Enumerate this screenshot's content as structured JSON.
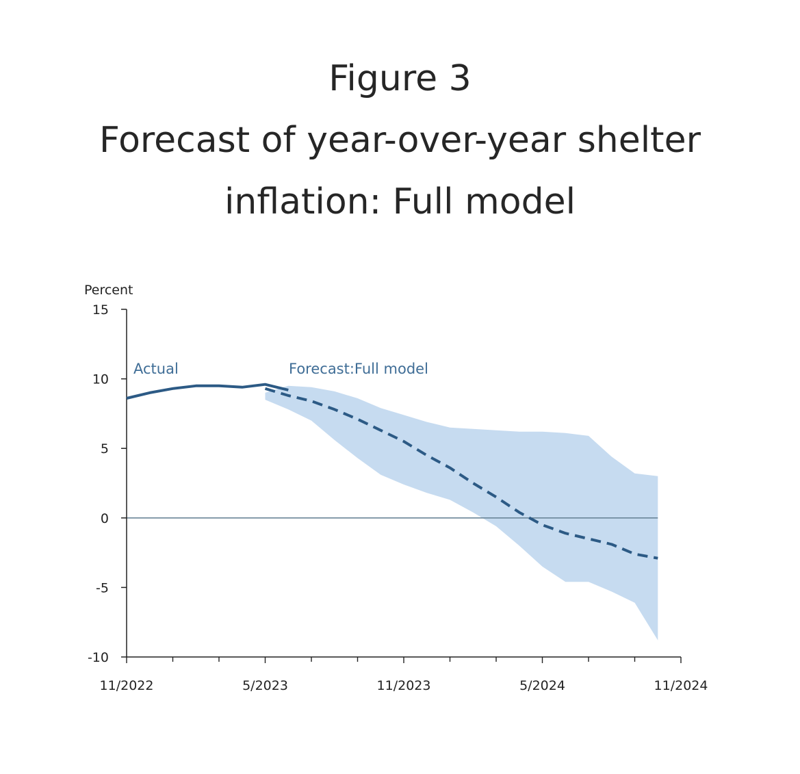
{
  "header": {
    "figure_label": "Figure 3",
    "title_line1": "Forecast of year-over-year shelter",
    "title_line2": "inflation: Full model"
  },
  "colors": {
    "actual_line": "#2c5a85",
    "forecast_line": "#2c5a85",
    "band_fill": "#c6dbf0",
    "zero_line": "#6a8598",
    "axis": "#222222",
    "annotation": "#3f6d96"
  },
  "chart_data": {
    "type": "line",
    "title": "Forecast of year-over-year shelter inflation: Full model",
    "ylabel": "Percent",
    "xlabel": "",
    "ylim": [
      -10,
      15
    ],
    "yticks": [
      15,
      10,
      5,
      0,
      -5,
      -10
    ],
    "x_tick_labels": [
      "11/2022",
      "5/2023",
      "11/2023",
      "5/2024",
      "11/2024"
    ],
    "x_axis_start": "2022-11",
    "x_axis_end": "2024-11",
    "grid": false,
    "annotations": [
      "Actual",
      "Forecast:Full model"
    ],
    "series": [
      {
        "name": "Actual",
        "style": "solid",
        "x": [
          "2022-11",
          "2022-12",
          "2023-01",
          "2023-02",
          "2023-03",
          "2023-04",
          "2023-05",
          "2023-06"
        ],
        "values": [
          8.6,
          9.0,
          9.3,
          9.5,
          9.5,
          9.4,
          9.6,
          9.2
        ]
      },
      {
        "name": "Forecast:Full model",
        "style": "dashed",
        "x": [
          "2023-05",
          "2023-06",
          "2023-07",
          "2023-08",
          "2023-09",
          "2023-10",
          "2023-11",
          "2023-12",
          "2024-01",
          "2024-02",
          "2024-03",
          "2024-04",
          "2024-05",
          "2024-06",
          "2024-07",
          "2024-08",
          "2024-09",
          "2024-10"
        ],
        "values": [
          9.3,
          8.8,
          8.4,
          7.8,
          7.1,
          6.3,
          5.5,
          4.5,
          3.6,
          2.5,
          1.5,
          0.4,
          -0.5,
          -1.1,
          -1.5,
          -1.9,
          -2.6,
          -2.9
        ]
      }
    ],
    "band": {
      "x": [
        "2023-05",
        "2023-06",
        "2023-07",
        "2023-08",
        "2023-09",
        "2023-10",
        "2023-11",
        "2023-12",
        "2024-01",
        "2024-02",
        "2024-03",
        "2024-04",
        "2024-05",
        "2024-06",
        "2024-07",
        "2024-08",
        "2024-09",
        "2024-10"
      ],
      "upper": [
        9.0,
        9.5,
        9.4,
        9.1,
        8.6,
        7.9,
        7.4,
        6.9,
        6.5,
        6.4,
        6.3,
        6.2,
        6.2,
        6.1,
        5.9,
        4.4,
        3.2,
        3.0
      ],
      "lower": [
        8.5,
        7.8,
        7.0,
        5.6,
        4.3,
        3.1,
        2.4,
        1.8,
        1.3,
        0.4,
        -0.6,
        -2.0,
        -3.5,
        -4.6,
        -4.6,
        -5.3,
        -6.1,
        -8.8
      ]
    }
  }
}
